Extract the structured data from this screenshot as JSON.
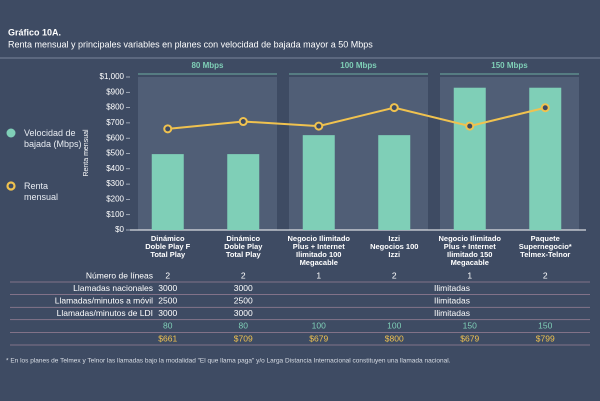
{
  "chart_data": {
    "type": "bar",
    "title": "Gráfico 10A.",
    "subtitle": "Renta mensual y principales variables en planes con velocidad de bajada mayor a 50 Mbps",
    "y_label": "Renta mensual",
    "groups": [
      {
        "label": "80 Mbps",
        "from": 0,
        "to": 1
      },
      {
        "label": "100 Mbps",
        "from": 2,
        "to": 3
      },
      {
        "label": "150 Mbps",
        "from": 4,
        "to": 5
      }
    ],
    "categories": [
      [
        "Dinámico",
        "Doble Play F",
        "Total Play"
      ],
      [
        "Dinámico",
        "Doble Play",
        "Total Play"
      ],
      [
        "Negocio Ilimitado",
        "Plus + Internet",
        "Ilimitado 100",
        "Megacable"
      ],
      [
        "Izzi",
        "Negocios 100",
        "Izzi"
      ],
      [
        "Negocio Ilimitado",
        "Plus + Internet",
        "Ilimitado 150",
        "Megacable"
      ],
      [
        "Paquete",
        "Supernegocio*",
        "Telmex-Telnor"
      ]
    ],
    "series": [
      {
        "name": "Velocidad de bajada (Mbps)",
        "color": "#7fcfb7",
        "values": [
          80,
          80,
          100,
          100,
          150,
          150
        ]
      },
      {
        "name": "Renta mensual",
        "color": "#f0c24f",
        "values": [
          661,
          709,
          679,
          800,
          679,
          799
        ],
        "value_labels": [
          "$661",
          "$709",
          "$679",
          "$800",
          "$679",
          "$799"
        ]
      }
    ],
    "ylim": [
      0,
      1000
    ],
    "yticks": [
      {
        "value": 0,
        "label": "$0"
      },
      {
        "value": 100,
        "label": "$100"
      },
      {
        "value": 200,
        "label": "$200"
      },
      {
        "value": 300,
        "label": "$300"
      },
      {
        "value": 400,
        "label": "$400"
      },
      {
        "value": 500,
        "label": "$500"
      },
      {
        "value": 600,
        "label": "$600"
      },
      {
        "value": 700,
        "label": "$700"
      },
      {
        "value": 800,
        "label": "$800"
      },
      {
        "value": 900,
        "label": "$900"
      },
      {
        "value": 1000,
        "label": "$1,000"
      }
    ],
    "table": [
      {
        "label": "Número de líneas",
        "cells": [
          "2",
          "2",
          "1",
          "2",
          "1",
          "2"
        ]
      },
      {
        "label": "Llamadas nacionales",
        "cells": [
          "3000",
          "3000",
          "Ilimitadas"
        ]
      },
      {
        "label": "Llamadas/minutos a móvil",
        "cells": [
          "2500",
          "2500",
          "Ilimitadas"
        ]
      },
      {
        "label": "Llamadas/minutos de LDI",
        "cells": [
          "3000",
          "3000",
          "Ilimitadas"
        ]
      }
    ],
    "footnote": "* En los planes de Telmex y Telnor las llamadas bajo la modalidad \"El que llama paga\" y/o Larga Distancia Internacional constituyen una llamada nacional."
  }
}
